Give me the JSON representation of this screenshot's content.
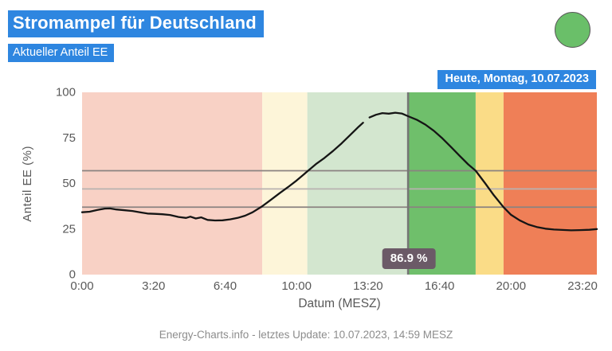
{
  "colors": {
    "accent_blue": "#2e86e0",
    "status_light_green": "#6abf69",
    "curve_black": "#151515",
    "now_line_gray": "#757575",
    "tooltip_bg": "#6b5a67",
    "threshold_dark": "#8a8280",
    "threshold_light": "#b8b2b0"
  },
  "status_light": "green",
  "date_badge": "Heute, Montag, 10.07.2023",
  "footer_text": "Energy-Charts.info - letztes Update: 10.07.2023, 14:59 MESZ",
  "chart_data": {
    "type": "line",
    "title": "Stromampel für Deutschland",
    "subtitle": "Aktueller Anteil EE",
    "xlabel": "Datum (MESZ)",
    "ylabel": "Anteil EE (%)",
    "xlim": [
      0,
      24
    ],
    "ylim": [
      0,
      100
    ],
    "grid": false,
    "x_ticks": [
      {
        "hour": 0,
        "label": "0:00"
      },
      {
        "hour": 3.333,
        "label": "3:20"
      },
      {
        "hour": 6.667,
        "label": "6:40"
      },
      {
        "hour": 10,
        "label": "10:00"
      },
      {
        "hour": 13.333,
        "label": "13:20"
      },
      {
        "hour": 16.667,
        "label": "16:40"
      },
      {
        "hour": 20,
        "label": "20:00"
      },
      {
        "hour": 23.333,
        "label": "23:20"
      }
    ],
    "y_ticks": [
      0,
      25,
      50,
      75,
      100
    ],
    "thresholds": [
      {
        "value": 57,
        "weight": "dark"
      },
      {
        "value": 47,
        "weight": "light"
      },
      {
        "value": 37,
        "weight": "dark"
      }
    ],
    "bands": [
      {
        "from": 0,
        "to": 8.4,
        "phase": "past-red",
        "color": "#f8d1c5"
      },
      {
        "from": 8.4,
        "to": 10.5,
        "phase": "past-yellow",
        "color": "#fdf5d9"
      },
      {
        "from": 10.5,
        "to": 15.2,
        "phase": "past-green",
        "color": "#d3e6cf"
      },
      {
        "from": 15.2,
        "to": 18.35,
        "phase": "forecast-green",
        "color": "#6fbf6b"
      },
      {
        "from": 18.35,
        "to": 19.65,
        "phase": "forecast-yellow",
        "color": "#fadc87"
      },
      {
        "from": 19.65,
        "to": 24,
        "phase": "forecast-red",
        "color": "#ef7f57"
      }
    ],
    "now_marker": {
      "hour": 15.2,
      "value_label": "86.9 %",
      "value": 86.9
    },
    "series": [
      {
        "name": "Anteil EE (%)",
        "segments": [
          [
            [
              0,
              34.2
            ],
            [
              0.35,
              34.5
            ],
            [
              0.7,
              35.4
            ],
            [
              1.05,
              36.2
            ],
            [
              1.3,
              36.3
            ],
            [
              1.6,
              35.7
            ],
            [
              2.0,
              35.3
            ],
            [
              2.35,
              34.9
            ],
            [
              2.7,
              34.2
            ],
            [
              3.05,
              33.5
            ],
            [
              3.4,
              33.3
            ],
            [
              3.75,
              33.1
            ],
            [
              4.1,
              32.7
            ],
            [
              4.5,
              31.6
            ],
            [
              4.85,
              31.1
            ],
            [
              5.05,
              31.8
            ],
            [
              5.3,
              30.8
            ],
            [
              5.55,
              31.4
            ],
            [
              5.85,
              30.0
            ],
            [
              6.2,
              29.7
            ],
            [
              6.55,
              29.8
            ],
            [
              6.9,
              30.3
            ],
            [
              7.25,
              31.1
            ],
            [
              7.6,
              32.3
            ],
            [
              7.95,
              34.2
            ],
            [
              8.4,
              37.5
            ],
            [
              8.8,
              41.0
            ],
            [
              9.2,
              44.6
            ],
            [
              9.6,
              48.0
            ],
            [
              10.0,
              51.6
            ],
            [
              10.5,
              56.6
            ],
            [
              10.9,
              60.6
            ],
            [
              11.3,
              64.0
            ],
            [
              11.7,
              67.8
            ],
            [
              12.1,
              72.0
            ],
            [
              12.5,
              76.6
            ],
            [
              12.9,
              81.2
            ],
            [
              13.1,
              83.3
            ]
          ],
          [
            [
              13.4,
              86.2
            ],
            [
              13.7,
              87.7
            ],
            [
              14.0,
              88.6
            ],
            [
              14.3,
              88.3
            ],
            [
              14.6,
              88.8
            ],
            [
              14.9,
              88.4
            ],
            [
              15.2,
              86.9
            ],
            [
              15.6,
              85.0
            ],
            [
              16.0,
              82.3
            ],
            [
              16.4,
              78.9
            ],
            [
              16.8,
              74.7
            ],
            [
              17.2,
              70.0
            ],
            [
              17.6,
              65.2
            ],
            [
              18.0,
              60.5
            ],
            [
              18.35,
              57.0
            ],
            [
              18.8,
              50.0
            ],
            [
              19.2,
              43.5
            ],
            [
              19.65,
              37.0
            ],
            [
              20.0,
              32.8
            ],
            [
              20.4,
              29.8
            ],
            [
              20.8,
              27.5
            ],
            [
              21.2,
              26.1
            ],
            [
              21.6,
              25.2
            ],
            [
              22.0,
              24.7
            ],
            [
              22.4,
              24.5
            ],
            [
              22.8,
              24.3
            ],
            [
              23.2,
              24.4
            ],
            [
              23.65,
              24.6
            ],
            [
              24,
              25.0
            ]
          ]
        ]
      }
    ]
  }
}
